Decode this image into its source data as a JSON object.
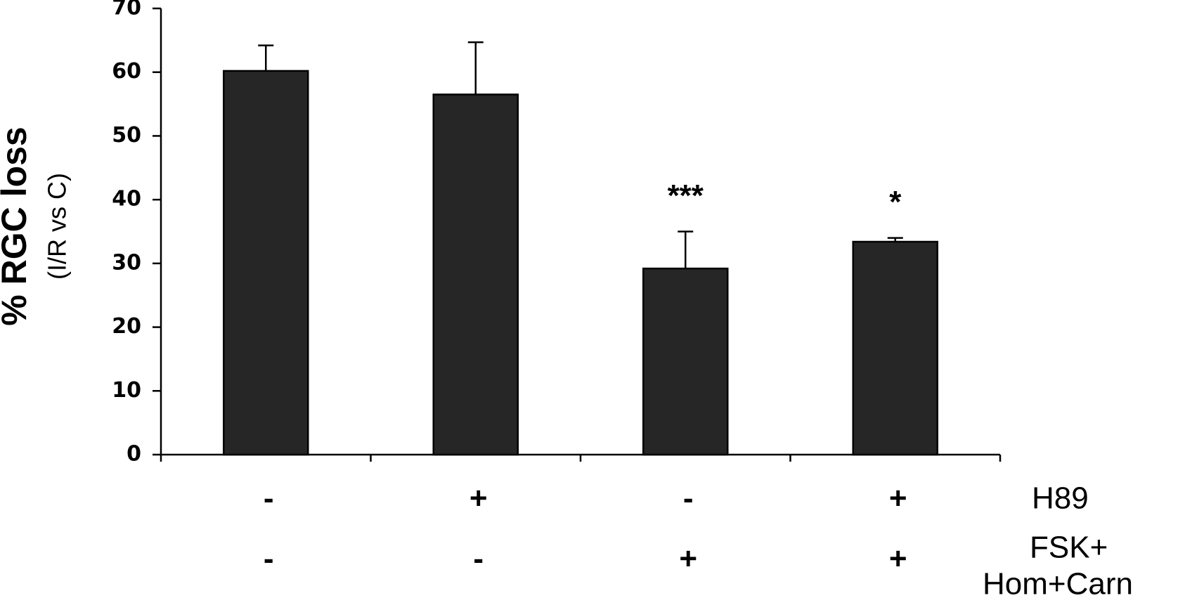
{
  "chart_data": {
    "type": "bar",
    "ylabel": "% RGC loss",
    "ylabel_sub": "(I/R vs C)",
    "values": [
      60.2,
      56.5,
      29.2,
      33.4
    ],
    "errors": [
      4.0,
      8.2,
      5.8,
      0.6
    ],
    "annotations": [
      null,
      null,
      "***",
      "*"
    ],
    "color": "#262626",
    "ylim": [
      0,
      70
    ],
    "yticks": [
      0,
      10,
      20,
      30,
      40,
      50,
      60,
      70
    ],
    "condition_rows": [
      {
        "name": [
          "H89"
        ],
        "labels": [
          "-",
          "+",
          "-",
          "+"
        ]
      },
      {
        "name": [
          "FSK+",
          "Hom+Carn"
        ],
        "labels": [
          "-",
          "-",
          "+",
          "+"
        ]
      }
    ]
  }
}
